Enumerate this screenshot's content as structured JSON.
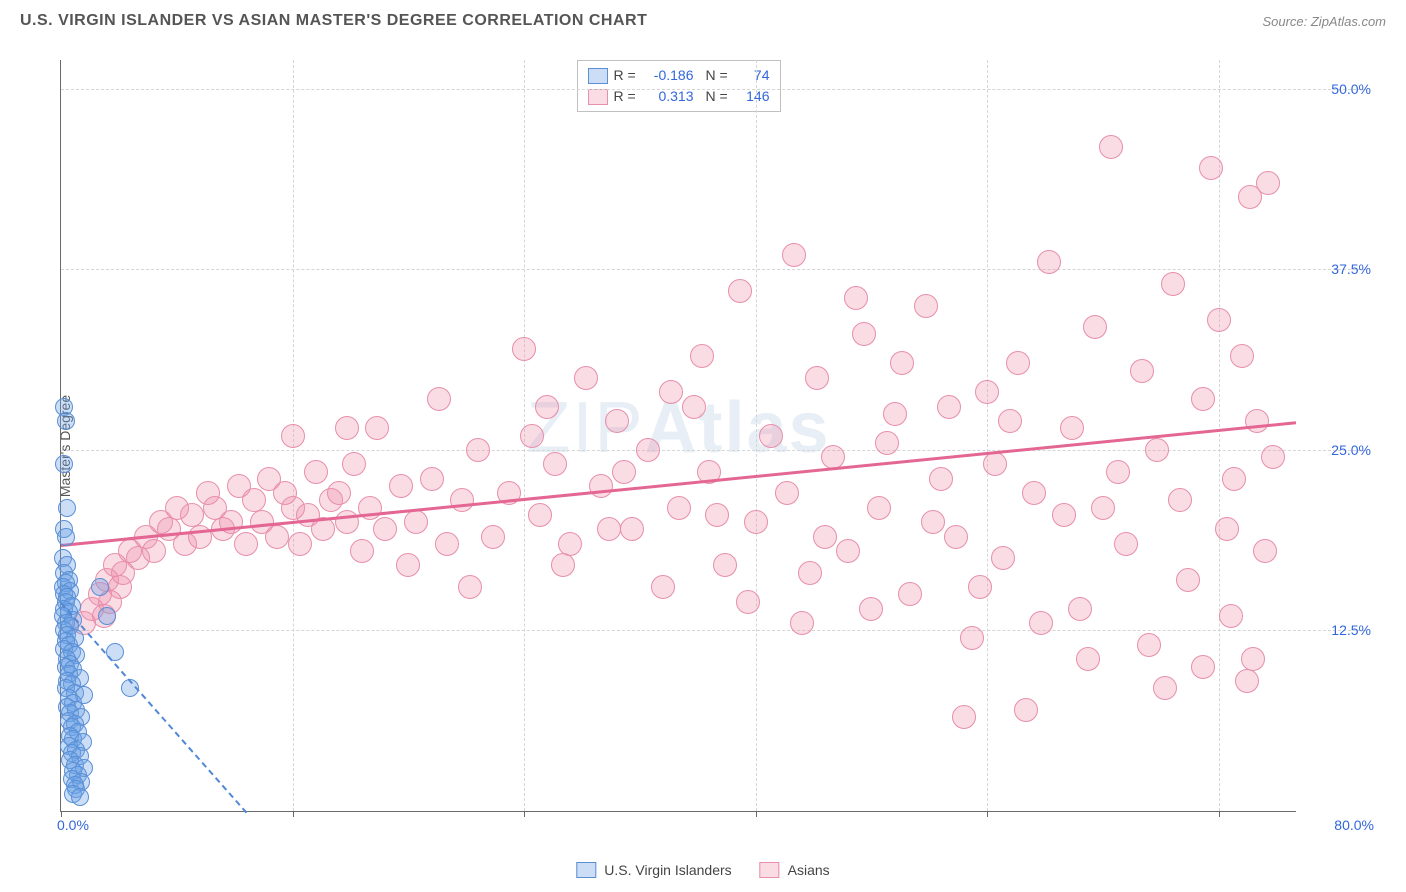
{
  "title": "U.S. VIRGIN ISLANDER VS ASIAN MASTER'S DEGREE CORRELATION CHART",
  "source": "Source: ZipAtlas.com",
  "ylabel": "Master's Degree",
  "watermark_plain": "ZIP",
  "watermark_bold": "Atlas",
  "chart": {
    "type": "scatter",
    "background_color": "#ffffff",
    "grid_color": "#d5d5d5",
    "axis_color": "#6a6a6a",
    "tick_label_color": "#3366dd",
    "x_min": 0,
    "x_max": 80,
    "y_min": 0,
    "y_max": 52,
    "y_ticks": [
      12.5,
      25.0,
      37.5,
      50.0
    ],
    "y_tick_labels": [
      "12.5%",
      "25.0%",
      "37.5%",
      "50.0%"
    ],
    "x_ticks": [
      0,
      15,
      30,
      45,
      60,
      75
    ],
    "x_label_min": "0.0%",
    "x_label_max": "80.0%",
    "marker_radius_a": 9,
    "marker_radius_b": 12
  },
  "series": [
    {
      "key": "a",
      "label": "U.S. Virgin Islanders",
      "R": "-0.186",
      "N": "74",
      "fill": "rgba(105,160,230,0.35)",
      "stroke": "#5a8fd6",
      "trend": {
        "x1": 0,
        "y1": 14.5,
        "x2": 12,
        "y2": 0,
        "color": "#4f88d6",
        "dashed": true
      },
      "points": [
        [
          0.2,
          28.0
        ],
        [
          0.3,
          27.0
        ],
        [
          0.2,
          24.0
        ],
        [
          0.4,
          21.0
        ],
        [
          0.2,
          19.5
        ],
        [
          0.3,
          19.0
        ],
        [
          0.1,
          17.5
        ],
        [
          0.4,
          17.0
        ],
        [
          0.2,
          16.5
        ],
        [
          0.5,
          16.0
        ],
        [
          0.3,
          15.8
        ],
        [
          0.1,
          15.5
        ],
        [
          0.6,
          15.2
        ],
        [
          0.2,
          15.0
        ],
        [
          0.4,
          14.8
        ],
        [
          0.3,
          14.5
        ],
        [
          0.7,
          14.2
        ],
        [
          0.2,
          14.0
        ],
        [
          0.5,
          13.8
        ],
        [
          0.1,
          13.5
        ],
        [
          0.8,
          13.2
        ],
        [
          0.3,
          13.0
        ],
        [
          0.6,
          12.8
        ],
        [
          0.2,
          12.5
        ],
        [
          0.4,
          12.2
        ],
        [
          0.9,
          12.0
        ],
        [
          0.3,
          11.8
        ],
        [
          0.5,
          11.5
        ],
        [
          0.2,
          11.2
        ],
        [
          0.7,
          11.0
        ],
        [
          1.0,
          10.8
        ],
        [
          0.4,
          10.5
        ],
        [
          0.6,
          10.2
        ],
        [
          0.3,
          10.0
        ],
        [
          0.8,
          9.8
        ],
        [
          0.5,
          9.5
        ],
        [
          1.2,
          9.2
        ],
        [
          0.4,
          9.0
        ],
        [
          0.7,
          8.8
        ],
        [
          0.3,
          8.5
        ],
        [
          0.9,
          8.2
        ],
        [
          1.5,
          8.0
        ],
        [
          0.5,
          7.8
        ],
        [
          0.8,
          7.5
        ],
        [
          0.4,
          7.2
        ],
        [
          1.0,
          7.0
        ],
        [
          0.6,
          6.8
        ],
        [
          1.3,
          6.5
        ],
        [
          0.5,
          6.2
        ],
        [
          0.9,
          6.0
        ],
        [
          0.7,
          5.8
        ],
        [
          1.1,
          5.5
        ],
        [
          0.6,
          5.2
        ],
        [
          0.8,
          5.0
        ],
        [
          1.4,
          4.8
        ],
        [
          0.5,
          4.5
        ],
        [
          1.0,
          4.2
        ],
        [
          0.7,
          4.0
        ],
        [
          1.2,
          3.8
        ],
        [
          0.6,
          3.5
        ],
        [
          0.9,
          3.2
        ],
        [
          1.5,
          3.0
        ],
        [
          0.8,
          2.8
        ],
        [
          1.1,
          2.5
        ],
        [
          0.7,
          2.2
        ],
        [
          1.3,
          2.0
        ],
        [
          0.9,
          1.8
        ],
        [
          1.0,
          1.5
        ],
        [
          0.8,
          1.2
        ],
        [
          1.2,
          1.0
        ],
        [
          3.0,
          13.5
        ],
        [
          4.5,
          8.5
        ],
        [
          2.5,
          15.5
        ],
        [
          3.5,
          11.0
        ]
      ]
    },
    {
      "key": "b",
      "label": "Asians",
      "R": "0.313",
      "N": "146",
      "fill": "rgba(240,140,170,0.30)",
      "stroke": "#e78fab",
      "trend": {
        "x1": 0,
        "y1": 18.5,
        "x2": 80,
        "y2": 27.0,
        "color": "#e36693",
        "dashed": false
      },
      "points": [
        [
          1.5,
          13.0
        ],
        [
          2.0,
          14.0
        ],
        [
          2.5,
          15.0
        ],
        [
          2.8,
          13.5
        ],
        [
          3.0,
          16.0
        ],
        [
          3.2,
          14.5
        ],
        [
          3.5,
          17.0
        ],
        [
          3.8,
          15.5
        ],
        [
          4.0,
          16.5
        ],
        [
          4.5,
          18.0
        ],
        [
          5.0,
          17.5
        ],
        [
          5.5,
          19.0
        ],
        [
          6.0,
          18.0
        ],
        [
          6.5,
          20.0
        ],
        [
          7.0,
          19.5
        ],
        [
          7.5,
          21.0
        ],
        [
          8.0,
          18.5
        ],
        [
          8.5,
          20.5
        ],
        [
          9.0,
          19.0
        ],
        [
          9.5,
          22.0
        ],
        [
          10.0,
          21.0
        ],
        [
          10.5,
          19.5
        ],
        [
          11.0,
          20.0
        ],
        [
          11.5,
          22.5
        ],
        [
          12.0,
          18.5
        ],
        [
          12.5,
          21.5
        ],
        [
          13.0,
          20.0
        ],
        [
          13.5,
          23.0
        ],
        [
          14.0,
          19.0
        ],
        [
          14.5,
          22.0
        ],
        [
          15.0,
          21.0
        ],
        [
          15.5,
          18.5
        ],
        [
          16.0,
          20.5
        ],
        [
          16.5,
          23.5
        ],
        [
          17.0,
          19.5
        ],
        [
          17.5,
          21.5
        ],
        [
          18.0,
          22.0
        ],
        [
          18.5,
          20.0
        ],
        [
          19.0,
          24.0
        ],
        [
          19.5,
          18.0
        ],
        [
          20.0,
          21.0
        ],
        [
          21.0,
          19.5
        ],
        [
          22.0,
          22.5
        ],
        [
          23.0,
          20.0
        ],
        [
          24.0,
          23.0
        ],
        [
          25.0,
          18.5
        ],
        [
          26.0,
          21.5
        ],
        [
          27.0,
          25.0
        ],
        [
          28.0,
          19.0
        ],
        [
          29.0,
          22.0
        ],
        [
          30.0,
          32.0
        ],
        [
          30.5,
          26.0
        ],
        [
          31.0,
          20.5
        ],
        [
          32.0,
          24.0
        ],
        [
          33.0,
          18.5
        ],
        [
          34.0,
          30.0
        ],
        [
          35.0,
          22.5
        ],
        [
          36.0,
          27.0
        ],
        [
          37.0,
          19.5
        ],
        [
          38.0,
          25.0
        ],
        [
          39.0,
          15.5
        ],
        [
          40.0,
          21.0
        ],
        [
          41.0,
          28.0
        ],
        [
          42.0,
          23.5
        ],
        [
          43.0,
          17.0
        ],
        [
          44.0,
          36.0
        ],
        [
          45.0,
          20.0
        ],
        [
          46.0,
          26.0
        ],
        [
          47.0,
          22.0
        ],
        [
          48.0,
          13.0
        ],
        [
          49.0,
          30.0
        ],
        [
          50.0,
          24.5
        ],
        [
          51.0,
          18.0
        ],
        [
          52.0,
          33.0
        ],
        [
          53.0,
          21.0
        ],
        [
          54.0,
          27.5
        ],
        [
          55.0,
          15.0
        ],
        [
          56.0,
          35.0
        ],
        [
          57.0,
          23.0
        ],
        [
          58.0,
          19.0
        ],
        [
          59.0,
          12.0
        ],
        [
          60.0,
          29.0
        ],
        [
          60.5,
          24.0
        ],
        [
          61.0,
          17.5
        ],
        [
          62.0,
          31.0
        ],
        [
          63.0,
          22.0
        ],
        [
          64.0,
          38.0
        ],
        [
          65.0,
          20.5
        ],
        [
          65.5,
          26.5
        ],
        [
          66.0,
          14.0
        ],
        [
          67.0,
          33.5
        ],
        [
          68.0,
          46.0
        ],
        [
          68.5,
          23.5
        ],
        [
          69.0,
          18.5
        ],
        [
          70.0,
          30.5
        ],
        [
          70.5,
          11.5
        ],
        [
          71.0,
          25.0
        ],
        [
          72.0,
          36.5
        ],
        [
          72.5,
          21.5
        ],
        [
          73.0,
          16.0
        ],
        [
          74.0,
          28.5
        ],
        [
          74.5,
          44.5
        ],
        [
          75.0,
          34.0
        ],
        [
          75.5,
          19.5
        ],
        [
          75.8,
          13.5
        ],
        [
          76.0,
          23.0
        ],
        [
          76.5,
          31.5
        ],
        [
          77.0,
          42.5
        ],
        [
          77.2,
          10.5
        ],
        [
          77.5,
          27.0
        ],
        [
          78.0,
          18.0
        ],
        [
          78.2,
          43.5
        ],
        [
          78.5,
          24.5
        ],
        [
          58.5,
          6.5
        ],
        [
          62.5,
          7.0
        ],
        [
          71.5,
          8.5
        ],
        [
          74.0,
          10.0
        ],
        [
          76.8,
          9.0
        ],
        [
          24.5,
          28.5
        ],
        [
          31.5,
          28.0
        ],
        [
          20.5,
          26.5
        ],
        [
          15.0,
          26.0
        ],
        [
          47.5,
          38.5
        ],
        [
          51.5,
          35.5
        ],
        [
          41.5,
          31.5
        ],
        [
          54.5,
          31.0
        ],
        [
          36.5,
          23.5
        ],
        [
          42.5,
          20.5
        ],
        [
          48.5,
          16.5
        ],
        [
          52.5,
          14.0
        ],
        [
          56.5,
          20.0
        ],
        [
          59.5,
          15.5
        ],
        [
          63.5,
          13.0
        ],
        [
          66.5,
          10.5
        ],
        [
          32.5,
          17.0
        ],
        [
          26.5,
          15.5
        ],
        [
          22.5,
          17.0
        ],
        [
          18.5,
          26.5
        ],
        [
          44.5,
          14.5
        ],
        [
          39.5,
          29.0
        ],
        [
          35.5,
          19.5
        ],
        [
          49.5,
          19.0
        ],
        [
          53.5,
          25.5
        ],
        [
          57.5,
          28.0
        ],
        [
          61.5,
          27.0
        ],
        [
          67.5,
          21.0
        ]
      ]
    }
  ],
  "legend_labels": {
    "R": "R =",
    "N": "N ="
  },
  "bottom_legend": [
    "U.S. Virgin Islanders",
    "Asians"
  ]
}
